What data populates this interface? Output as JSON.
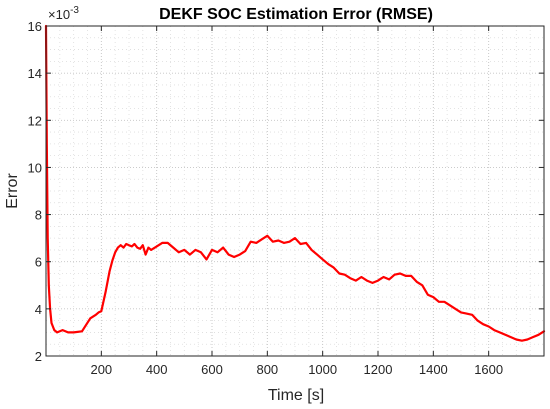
{
  "chart_data": {
    "type": "line",
    "title": "DEKF SOC Estimation Error (RMSE)",
    "xlabel": "Time [s]",
    "ylabel": "Error",
    "y_exponent_label": "×10",
    "y_exponent_power": "-3",
    "xlim": [
      0,
      1800
    ],
    "ylim": [
      2,
      16
    ],
    "xticks": [
      200,
      400,
      600,
      800,
      1000,
      1200,
      1400,
      1600
    ],
    "yticks": [
      2,
      4,
      6,
      8,
      10,
      12,
      14,
      16
    ],
    "grid": true,
    "grid_style": "dotted, major and minor",
    "line_color": "#ff0000",
    "series": [
      {
        "x": [
          0,
          3,
          6,
          10,
          15,
          20,
          30,
          40,
          60,
          80,
          100,
          130,
          160,
          180,
          190,
          200,
          215,
          230,
          240,
          250,
          260,
          270,
          280,
          290,
          300,
          310,
          320,
          330,
          340,
          350,
          360,
          370,
          380,
          400,
          420,
          440,
          460,
          480,
          500,
          520,
          540,
          560,
          580,
          600,
          620,
          640,
          660,
          680,
          700,
          720,
          740,
          760,
          780,
          800,
          820,
          840,
          860,
          880,
          900,
          920,
          940,
          960,
          980,
          1000,
          1020,
          1040,
          1060,
          1080,
          1100,
          1120,
          1140,
          1160,
          1180,
          1200,
          1220,
          1240,
          1260,
          1280,
          1300,
          1320,
          1340,
          1360,
          1380,
          1400,
          1420,
          1440,
          1460,
          1480,
          1500,
          1520,
          1540,
          1560,
          1580,
          1600,
          1620,
          1640,
          1660,
          1680,
          1700,
          1720,
          1740,
          1760,
          1780,
          1800
        ],
        "y": [
          16,
          11,
          7,
          5,
          4,
          3.4,
          3.1,
          3.0,
          3.1,
          3.0,
          3.0,
          3.05,
          3.6,
          3.75,
          3.85,
          3.9,
          4.7,
          5.6,
          6.05,
          6.4,
          6.6,
          6.7,
          6.6,
          6.75,
          6.7,
          6.65,
          6.75,
          6.6,
          6.55,
          6.7,
          6.3,
          6.6,
          6.5,
          6.65,
          6.8,
          6.8,
          6.6,
          6.4,
          6.5,
          6.3,
          6.5,
          6.4,
          6.1,
          6.5,
          6.4,
          6.6,
          6.3,
          6.2,
          6.3,
          6.45,
          6.85,
          6.8,
          6.95,
          7.1,
          6.85,
          6.9,
          6.8,
          6.85,
          7.0,
          6.75,
          6.8,
          6.5,
          6.3,
          6.1,
          5.9,
          5.75,
          5.5,
          5.45,
          5.3,
          5.2,
          5.35,
          5.2,
          5.1,
          5.2,
          5.35,
          5.25,
          5.45,
          5.5,
          5.4,
          5.4,
          5.15,
          5.0,
          4.6,
          4.5,
          4.3,
          4.3,
          4.15,
          4.0,
          3.85,
          3.8,
          3.75,
          3.5,
          3.35,
          3.25,
          3.1,
          3.0,
          2.9,
          2.8,
          2.7,
          2.65,
          2.7,
          2.8,
          2.9,
          3.05
        ]
      }
    ]
  }
}
